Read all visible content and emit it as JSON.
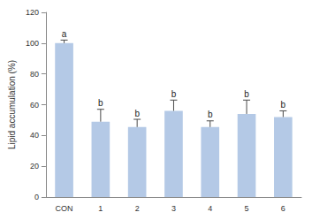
{
  "chart_data": {
    "type": "bar",
    "y_label": "Lipid accumulation (%)",
    "categories": [
      "CON",
      "1",
      "2",
      "3",
      "4",
      "5",
      "6"
    ],
    "values": [
      100,
      49,
      45.5,
      56,
      45.5,
      54,
      52
    ],
    "errors": [
      2,
      8,
      5,
      7,
      4,
      9,
      4
    ],
    "annotations": [
      "a",
      "b",
      "b",
      "b",
      "b",
      "b",
      "b"
    ],
    "color": "#b4c9e6",
    "ylim": [
      0,
      120
    ],
    "yticks": [
      0,
      20,
      40,
      60,
      80,
      100,
      120
    ],
    "grid": false
  }
}
